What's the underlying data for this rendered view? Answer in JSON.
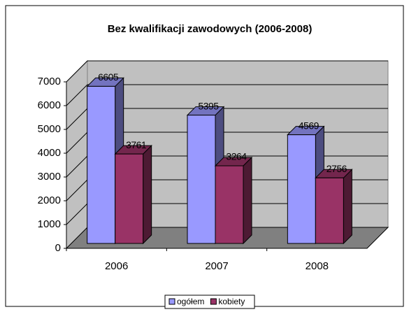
{
  "chart_data": {
    "type": "bar3d",
    "title": "Bez kwalifikacji zawodowych (2006-2008)",
    "categories": [
      "2006",
      "2007",
      "2008"
    ],
    "series": [
      {
        "name": "ogółem",
        "color": "#9999ff",
        "values": [
          6605,
          5395,
          4569
        ]
      },
      {
        "name": "kobiety",
        "color": "#993366",
        "values": [
          3761,
          3264,
          2756
        ]
      }
    ],
    "ylim": [
      0,
      7000
    ],
    "yticks": [
      0,
      1000,
      2000,
      3000,
      4000,
      5000,
      6000,
      7000
    ],
    "grid": true,
    "legend": "bottom"
  }
}
